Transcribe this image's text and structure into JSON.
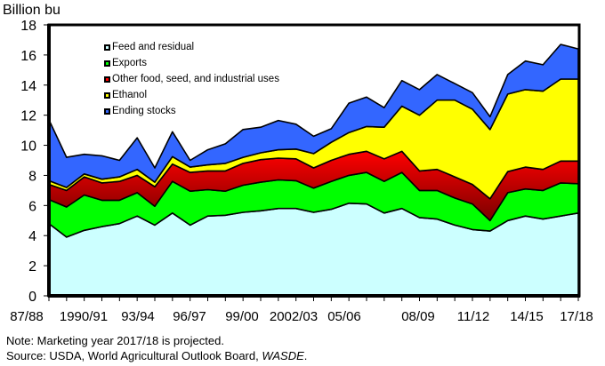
{
  "chart_data": {
    "type": "area",
    "stacked": true,
    "title": "",
    "ylabel": "Billion bu",
    "xlabel": "",
    "ylim": [
      0,
      18
    ],
    "yticks": [
      0,
      2,
      4,
      6,
      8,
      10,
      12,
      14,
      16,
      18
    ],
    "ytick_labels": [
      "0",
      "2",
      "4",
      "6",
      "8",
      "10",
      "12",
      "14",
      "16",
      "18"
    ],
    "x": [
      "87/88",
      "88/89",
      "89/90",
      "90/91",
      "91/92",
      "92/93",
      "93/94",
      "94/95",
      "95/96",
      "96/97",
      "97/98",
      "98/99",
      "99/00",
      "00/01",
      "01/02",
      "02/03",
      "03/04",
      "04/05",
      "05/06",
      "06/07",
      "07/08",
      "08/09",
      "09/10",
      "10/11",
      "11/12",
      "12/13",
      "13/14",
      "14/15",
      "15/16",
      "16/17",
      "17/18"
    ],
    "xtick_labels": [
      "87/88",
      "1990/91",
      "93/94",
      "96/97",
      "99/00",
      "2002/03",
      "05/06",
      "08/09",
      "11/12",
      "14/15",
      "17/18"
    ],
    "xtick_label_indices": [
      0,
      3,
      6,
      9,
      12,
      15,
      18,
      21,
      24,
      27,
      30
    ],
    "grid": false,
    "legend_position": "top-left",
    "series": [
      {
        "name": "Feed and residual",
        "color": "#ccffff",
        "values": [
          4.8,
          3.9,
          4.35,
          4.6,
          4.8,
          5.3,
          4.7,
          5.5,
          4.7,
          5.3,
          5.35,
          5.55,
          5.65,
          5.8,
          5.8,
          5.55,
          5.75,
          6.15,
          6.1,
          5.5,
          5.8,
          5.2,
          5.1,
          4.7,
          4.4,
          4.3,
          5.0,
          5.3,
          5.1,
          5.3,
          5.5
        ]
      },
      {
        "name": "Exports",
        "color": "#00ff00",
        "values": [
          1.6,
          2.0,
          2.35,
          1.75,
          1.55,
          1.55,
          1.25,
          2.1,
          2.25,
          1.75,
          1.6,
          1.8,
          1.9,
          1.9,
          1.85,
          1.6,
          1.85,
          1.85,
          2.1,
          2.1,
          2.4,
          1.8,
          1.9,
          1.8,
          1.7,
          0.7,
          1.85,
          1.8,
          1.9,
          2.2,
          1.95
        ]
      },
      {
        "name": "Other food, seed, and industrial uses",
        "color": "#ff0000",
        "color_dark": "#7a0000",
        "values": [
          1.0,
          1.1,
          1.2,
          1.15,
          1.25,
          1.15,
          1.3,
          1.15,
          1.25,
          1.25,
          1.35,
          1.45,
          1.5,
          1.45,
          1.45,
          1.35,
          1.4,
          1.4,
          1.4,
          1.5,
          1.4,
          1.3,
          1.4,
          1.4,
          1.3,
          1.45,
          1.4,
          1.45,
          1.4,
          1.45,
          1.5
        ]
      },
      {
        "name": "Ethanol",
        "color": "#ffff00",
        "values": [
          0.25,
          0.2,
          0.2,
          0.25,
          0.3,
          0.4,
          0.3,
          0.5,
          0.35,
          0.4,
          0.5,
          0.4,
          0.45,
          0.55,
          0.65,
          0.95,
          1.2,
          1.45,
          1.65,
          2.1,
          3.0,
          3.7,
          4.6,
          5.1,
          5.0,
          4.6,
          5.15,
          5.15,
          5.2,
          5.45,
          5.45
        ]
      },
      {
        "name": "Ending stocks",
        "color": "#3366ff",
        "values": [
          4.05,
          2.0,
          1.3,
          1.55,
          1.1,
          2.1,
          0.95,
          1.65,
          0.45,
          1.0,
          1.3,
          1.85,
          1.7,
          1.95,
          1.65,
          1.15,
          0.9,
          1.95,
          1.95,
          1.3,
          1.7,
          1.7,
          1.7,
          1.1,
          1.1,
          0.85,
          1.3,
          1.9,
          1.75,
          2.3,
          2.0
        ]
      }
    ]
  },
  "notes": {
    "note": "Note: Marketing year 2017/18 is projected.",
    "source_prefix": "Source:  USDA, World Agricultural Outlook Board, ",
    "source_italic": "WASDE",
    "source_suffix": "."
  }
}
